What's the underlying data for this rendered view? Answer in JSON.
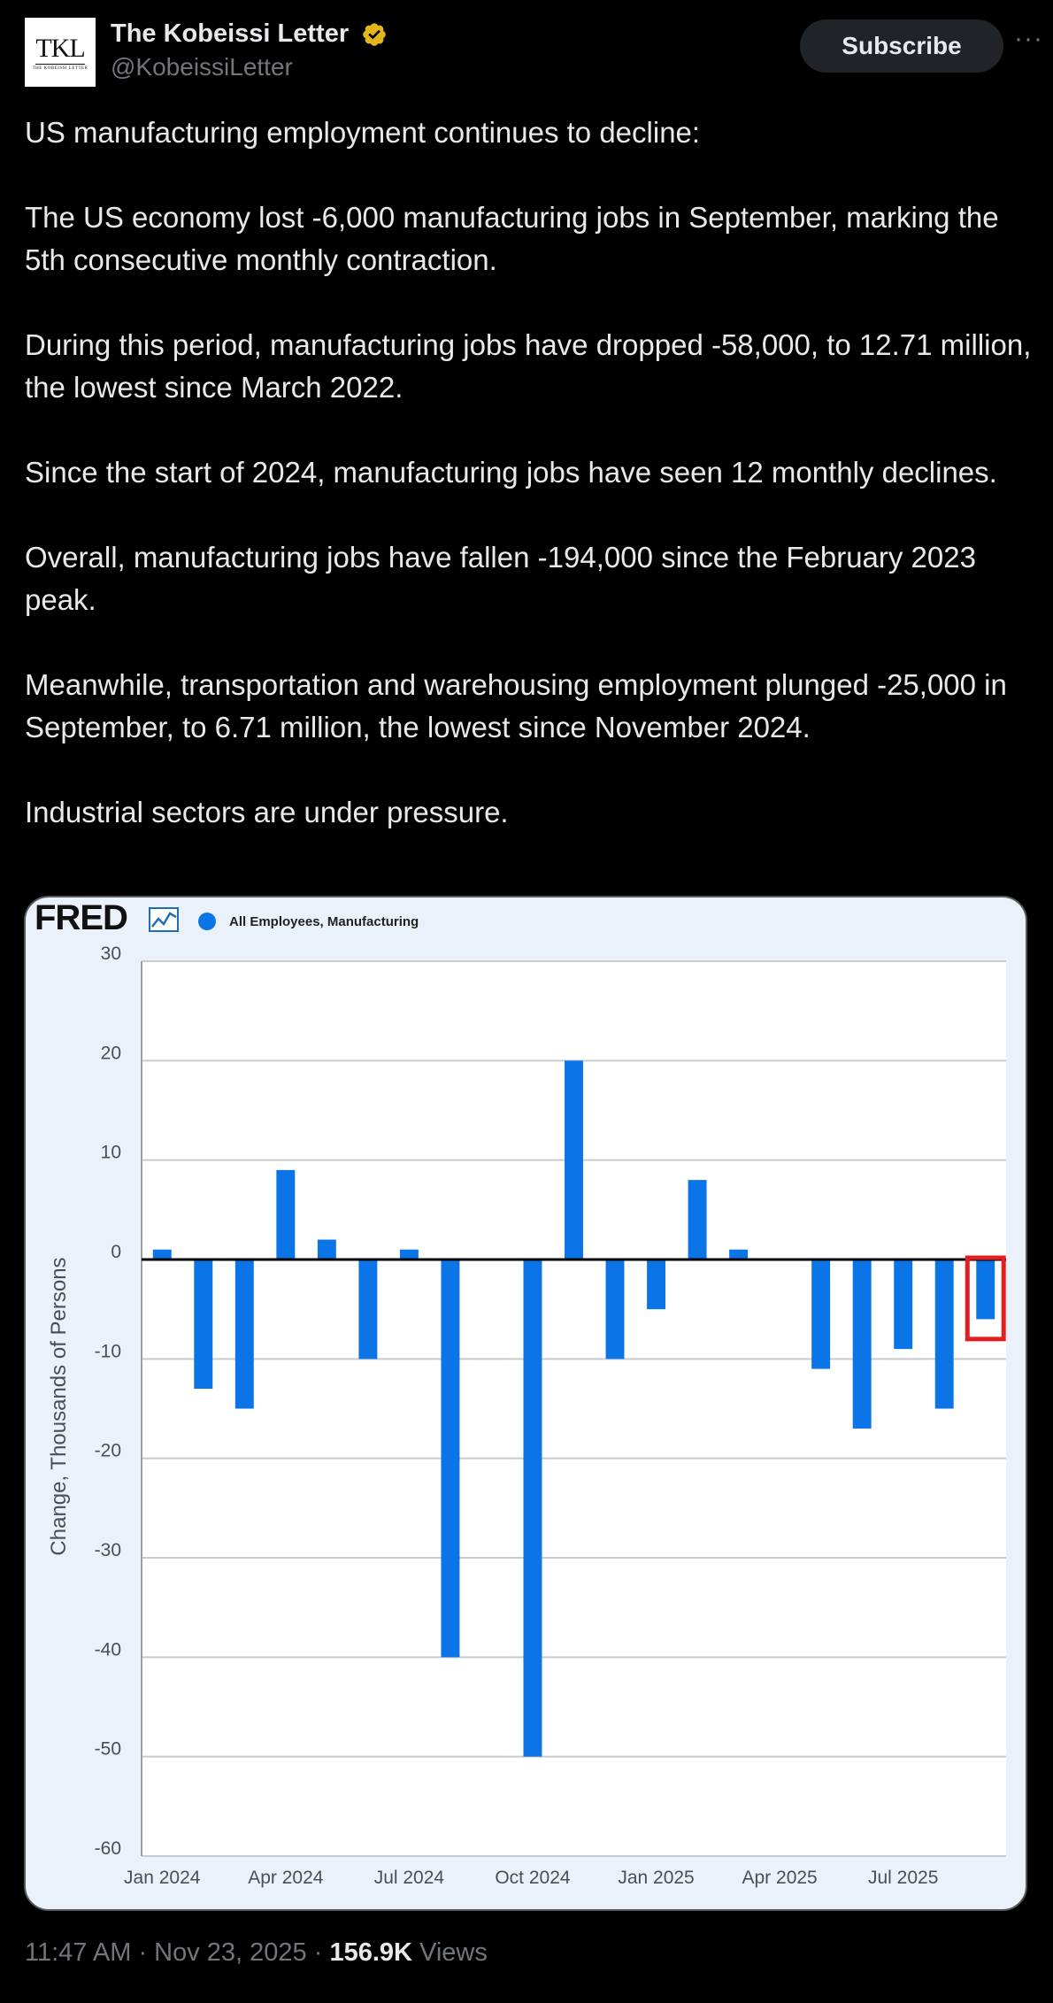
{
  "author": {
    "name": "The Kobeissi Letter",
    "handle": "@KobeissiLetter",
    "avatar_text": "TKL",
    "avatar_subtext": "THE KOBEISSI LETTER"
  },
  "actions": {
    "subscribe_label": "Subscribe",
    "more_label": "···"
  },
  "tweet": {
    "paragraphs": [
      "US manufacturing employment continues to decline:",
      "The US economy lost -6,000 manufacturing jobs in September, marking the 5th consecutive monthly contraction.",
      "During this period, manufacturing jobs have dropped -58,000, to 12.71 million, the lowest since March 2022.",
      "Since the start of 2024, manufacturing jobs have seen 12 monthly declines.",
      "Overall, manufacturing jobs have fallen -194,000 since the February 2023 peak.",
      "Meanwhile, transportation and warehousing employment plunged -25,000 in September, to 6.71 million, the lowest since November 2024.",
      "Industrial sectors are under pressure."
    ]
  },
  "footer": {
    "time": "11:47 AM",
    "sep1": " · ",
    "date": "Nov 23, 2025",
    "sep2": " · ",
    "views_count": "156.9K",
    "views_label": " Views"
  },
  "colors": {
    "bar": "#0b75e8",
    "highlight": "#e02020",
    "grid": "#c8cbcf",
    "card_bg": "#eaf1fb"
  },
  "chart_data": {
    "type": "bar",
    "logo": "FRED",
    "legend": "All Employees, Manufacturing",
    "ylabel": "Change, Thousands of Persons",
    "xlabel": "",
    "ylim": [
      -60,
      30
    ],
    "yticks": [
      30,
      20,
      10,
      0,
      -10,
      -20,
      -30,
      -40,
      -50,
      -60
    ],
    "categories": [
      "Jan 2024",
      "Feb 2024",
      "Mar 2024",
      "Apr 2024",
      "May 2024",
      "Jun 2024",
      "Jul 2024",
      "Aug 2024",
      "Sep 2024",
      "Oct 2024",
      "Nov 2024",
      "Dec 2024",
      "Jan 2025",
      "Feb 2025",
      "Mar 2025",
      "Apr 2025",
      "May 2025",
      "Jun 2025",
      "Jul 2025",
      "Aug 2025",
      "Sep 2025"
    ],
    "xtick_labels": [
      "Jan 2024",
      "Apr 2024",
      "Jul 2024",
      "Oct 2024",
      "Jan 2025",
      "Apr 2025",
      "Jul 2025"
    ],
    "xtick_indices": [
      0,
      3,
      6,
      9,
      12,
      15,
      18
    ],
    "values": [
      1,
      -13,
      -15,
      9,
      2,
      -10,
      1,
      -40,
      null,
      -50,
      20,
      -10,
      -5,
      8,
      1,
      null,
      -11,
      -17,
      -9,
      -15,
      -6
    ],
    "highlight_index": 20
  }
}
